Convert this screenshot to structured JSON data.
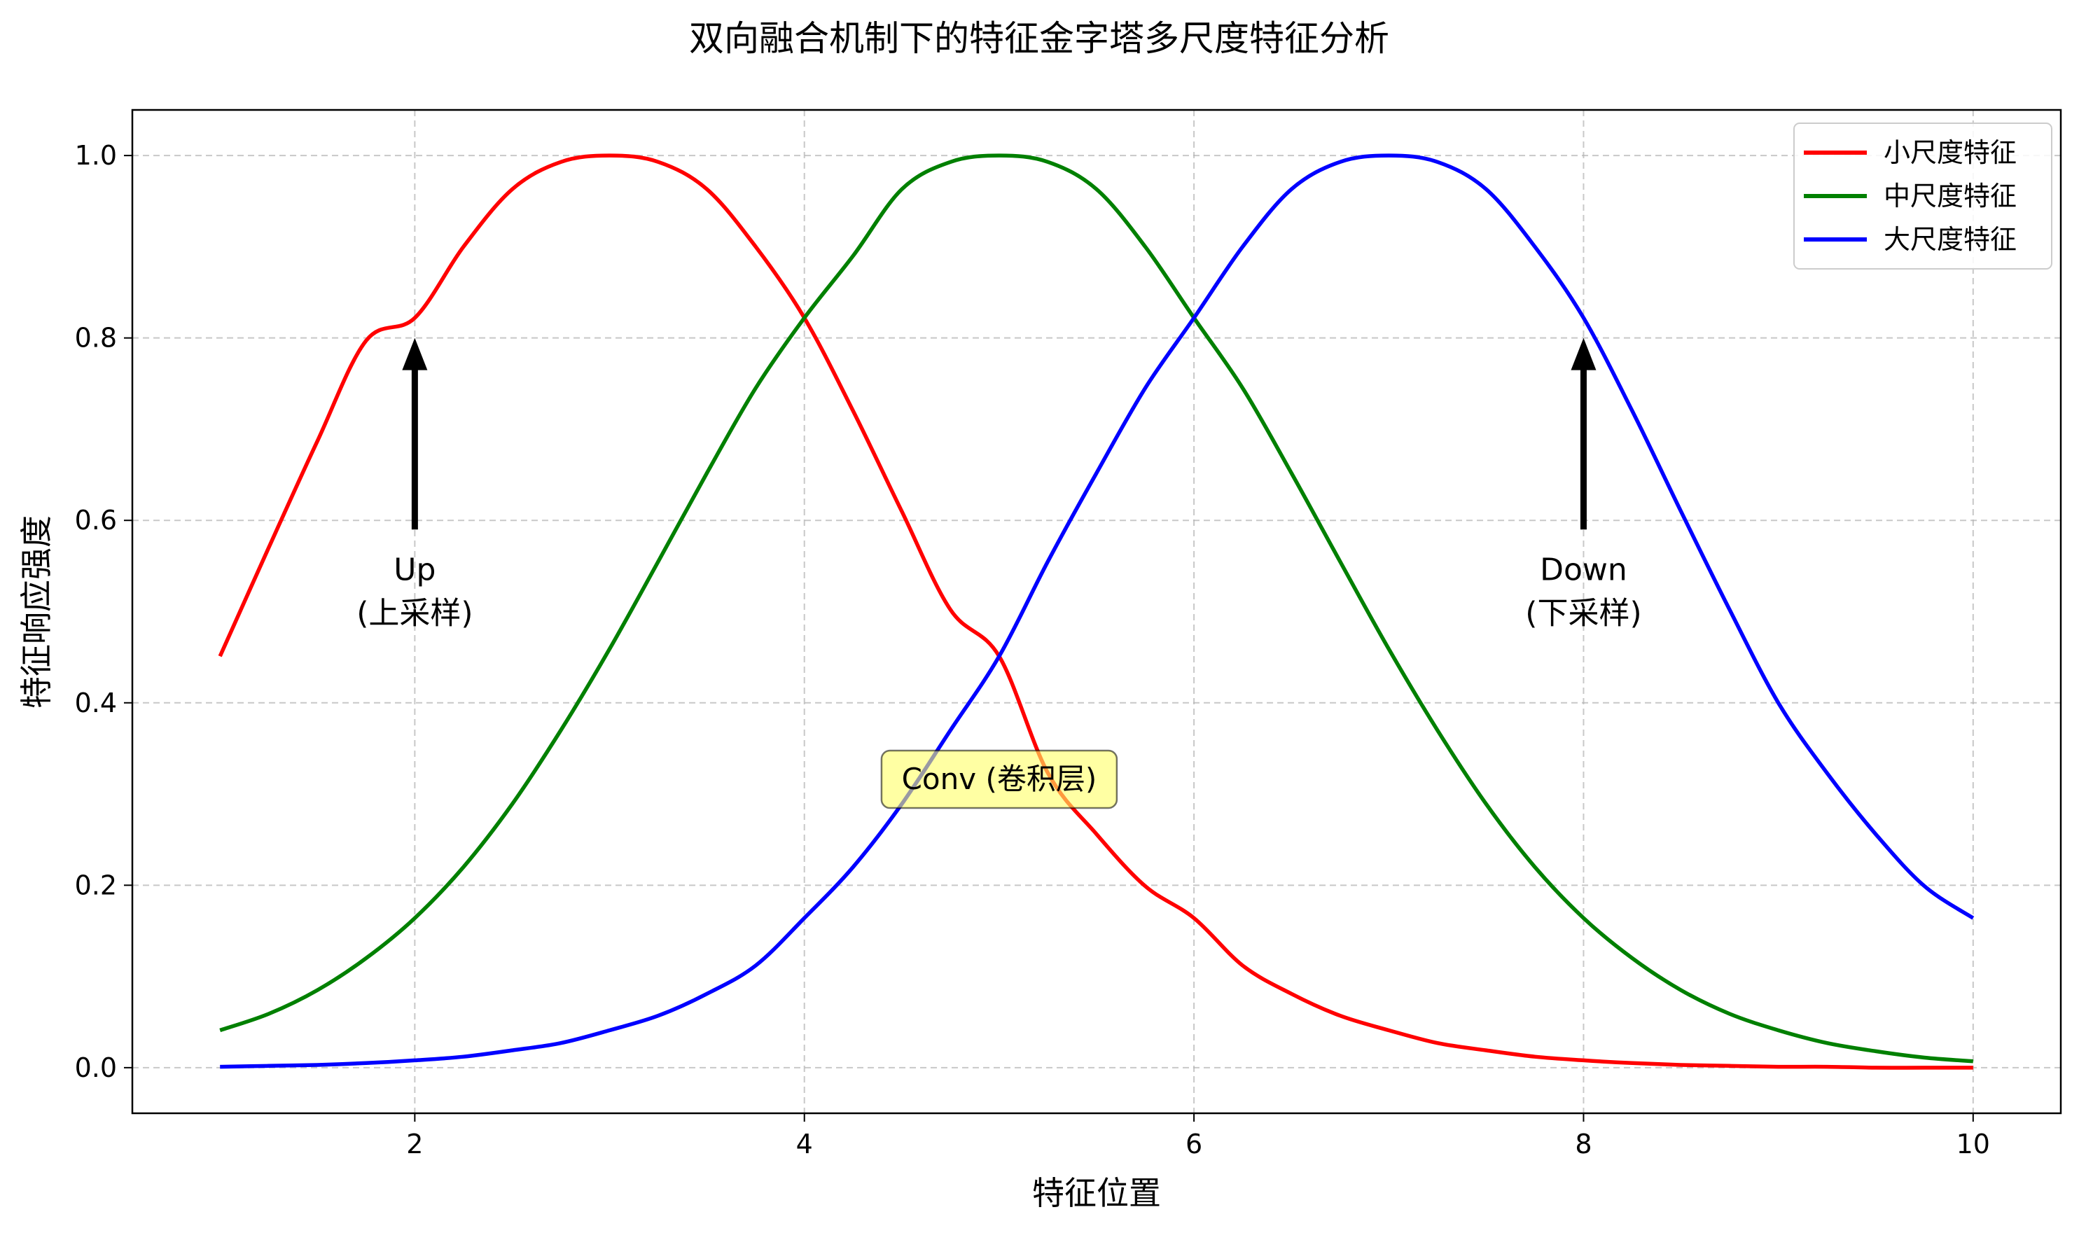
{
  "chart_data": {
    "type": "line",
    "title": "双向融合机制下的特征金字塔多尺度特征分析",
    "xlabel": "特征位置",
    "ylabel": "特征响应强度",
    "xlim": [
      0.55,
      10.45
    ],
    "ylim": [
      -0.05,
      1.05
    ],
    "xticks": [
      2,
      4,
      6,
      8,
      10
    ],
    "xtick_labels": [
      "2",
      "4",
      "6",
      "8",
      "10"
    ],
    "yticks": [
      0.0,
      0.2,
      0.4,
      0.6,
      0.8,
      1.0
    ],
    "ytick_labels": [
      "0.0",
      "0.2",
      "0.4",
      "0.6",
      "0.8",
      "1.0"
    ],
    "grid": true,
    "legend_position": "top-right",
    "series": [
      {
        "name": "小尺度特征",
        "color": "#ff0000",
        "x": [
          1.0,
          1.25,
          1.5,
          1.75,
          2.0,
          2.25,
          2.5,
          2.75,
          3.0,
          3.25,
          3.5,
          3.75,
          4.0,
          4.25,
          4.5,
          4.75,
          5.0,
          5.25,
          5.5,
          5.75,
          6.0,
          6.25,
          6.5,
          6.75,
          7.0,
          7.25,
          7.5,
          7.75,
          8.0,
          8.25,
          8.5,
          8.75,
          9.0,
          9.25,
          9.5,
          9.75,
          10.0
        ],
        "y": [
          0.451,
          0.57,
          0.687,
          0.797,
          0.822,
          0.9,
          0.963,
          0.993,
          1.0,
          0.993,
          0.963,
          0.9,
          0.822,
          0.72,
          0.61,
          0.502,
          0.451,
          0.323,
          0.256,
          0.199,
          0.164,
          0.112,
          0.081,
          0.057,
          0.041,
          0.027,
          0.019,
          0.012,
          0.008,
          0.005,
          0.003,
          0.002,
          0.001,
          0.001,
          0.0,
          0.0,
          0.0
        ]
      },
      {
        "name": "中尺度特征",
        "color": "#008000",
        "x": [
          1.0,
          1.25,
          1.5,
          1.75,
          2.0,
          2.25,
          2.5,
          2.75,
          3.0,
          3.25,
          3.5,
          3.75,
          4.0,
          4.25,
          4.5,
          4.75,
          5.0,
          5.25,
          5.5,
          5.75,
          6.0,
          6.25,
          6.5,
          6.75,
          7.0,
          7.25,
          7.5,
          7.75,
          8.0,
          8.25,
          8.5,
          8.75,
          9.0,
          9.25,
          9.5,
          9.75,
          10.0
        ],
        "y": [
          0.041,
          0.059,
          0.085,
          0.12,
          0.164,
          0.22,
          0.289,
          0.37,
          0.459,
          0.555,
          0.652,
          0.745,
          0.822,
          0.89,
          0.963,
          0.993,
          1.0,
          0.993,
          0.963,
          0.9,
          0.822,
          0.745,
          0.652,
          0.555,
          0.459,
          0.37,
          0.289,
          0.22,
          0.164,
          0.12,
          0.085,
          0.059,
          0.041,
          0.027,
          0.018,
          0.011,
          0.007
        ]
      },
      {
        "name": "大尺度特征",
        "color": "#0000ff",
        "x": [
          1.0,
          1.25,
          1.5,
          1.75,
          2.0,
          2.25,
          2.5,
          2.75,
          3.0,
          3.25,
          3.5,
          3.75,
          4.0,
          4.25,
          4.5,
          4.75,
          5.0,
          5.25,
          5.5,
          5.75,
          6.0,
          6.25,
          6.5,
          6.75,
          7.0,
          7.25,
          7.5,
          7.75,
          8.0,
          8.25,
          8.5,
          8.75,
          9.0,
          9.25,
          9.5,
          9.75,
          10.0
        ],
        "y": [
          0.001,
          0.002,
          0.003,
          0.005,
          0.008,
          0.012,
          0.019,
          0.027,
          0.041,
          0.057,
          0.081,
          0.112,
          0.164,
          0.22,
          0.289,
          0.37,
          0.451,
          0.555,
          0.652,
          0.745,
          0.822,
          0.9,
          0.963,
          0.993,
          1.0,
          0.993,
          0.963,
          0.9,
          0.822,
          0.72,
          0.61,
          0.502,
          0.4,
          0.323,
          0.256,
          0.199,
          0.164
        ]
      }
    ],
    "annotations": [
      {
        "id": "up",
        "lines": [
          "Up",
          "(上采样)"
        ],
        "arrow_from": [
          2.0,
          0.59
        ],
        "arrow_to": [
          2.0,
          0.8
        ],
        "text_anchor": [
          2.0,
          0.55
        ]
      },
      {
        "id": "down",
        "lines": [
          "Down",
          "(下采样)"
        ],
        "arrow_from": [
          8.0,
          0.59
        ],
        "arrow_to": [
          8.0,
          0.8
        ],
        "text_anchor": [
          8.0,
          0.55
        ]
      },
      {
        "id": "conv",
        "lines": [
          "Conv (卷积层)"
        ],
        "boxed": true,
        "box_color": "#ffff66",
        "text_anchor": [
          5.0,
          0.31
        ]
      }
    ]
  }
}
